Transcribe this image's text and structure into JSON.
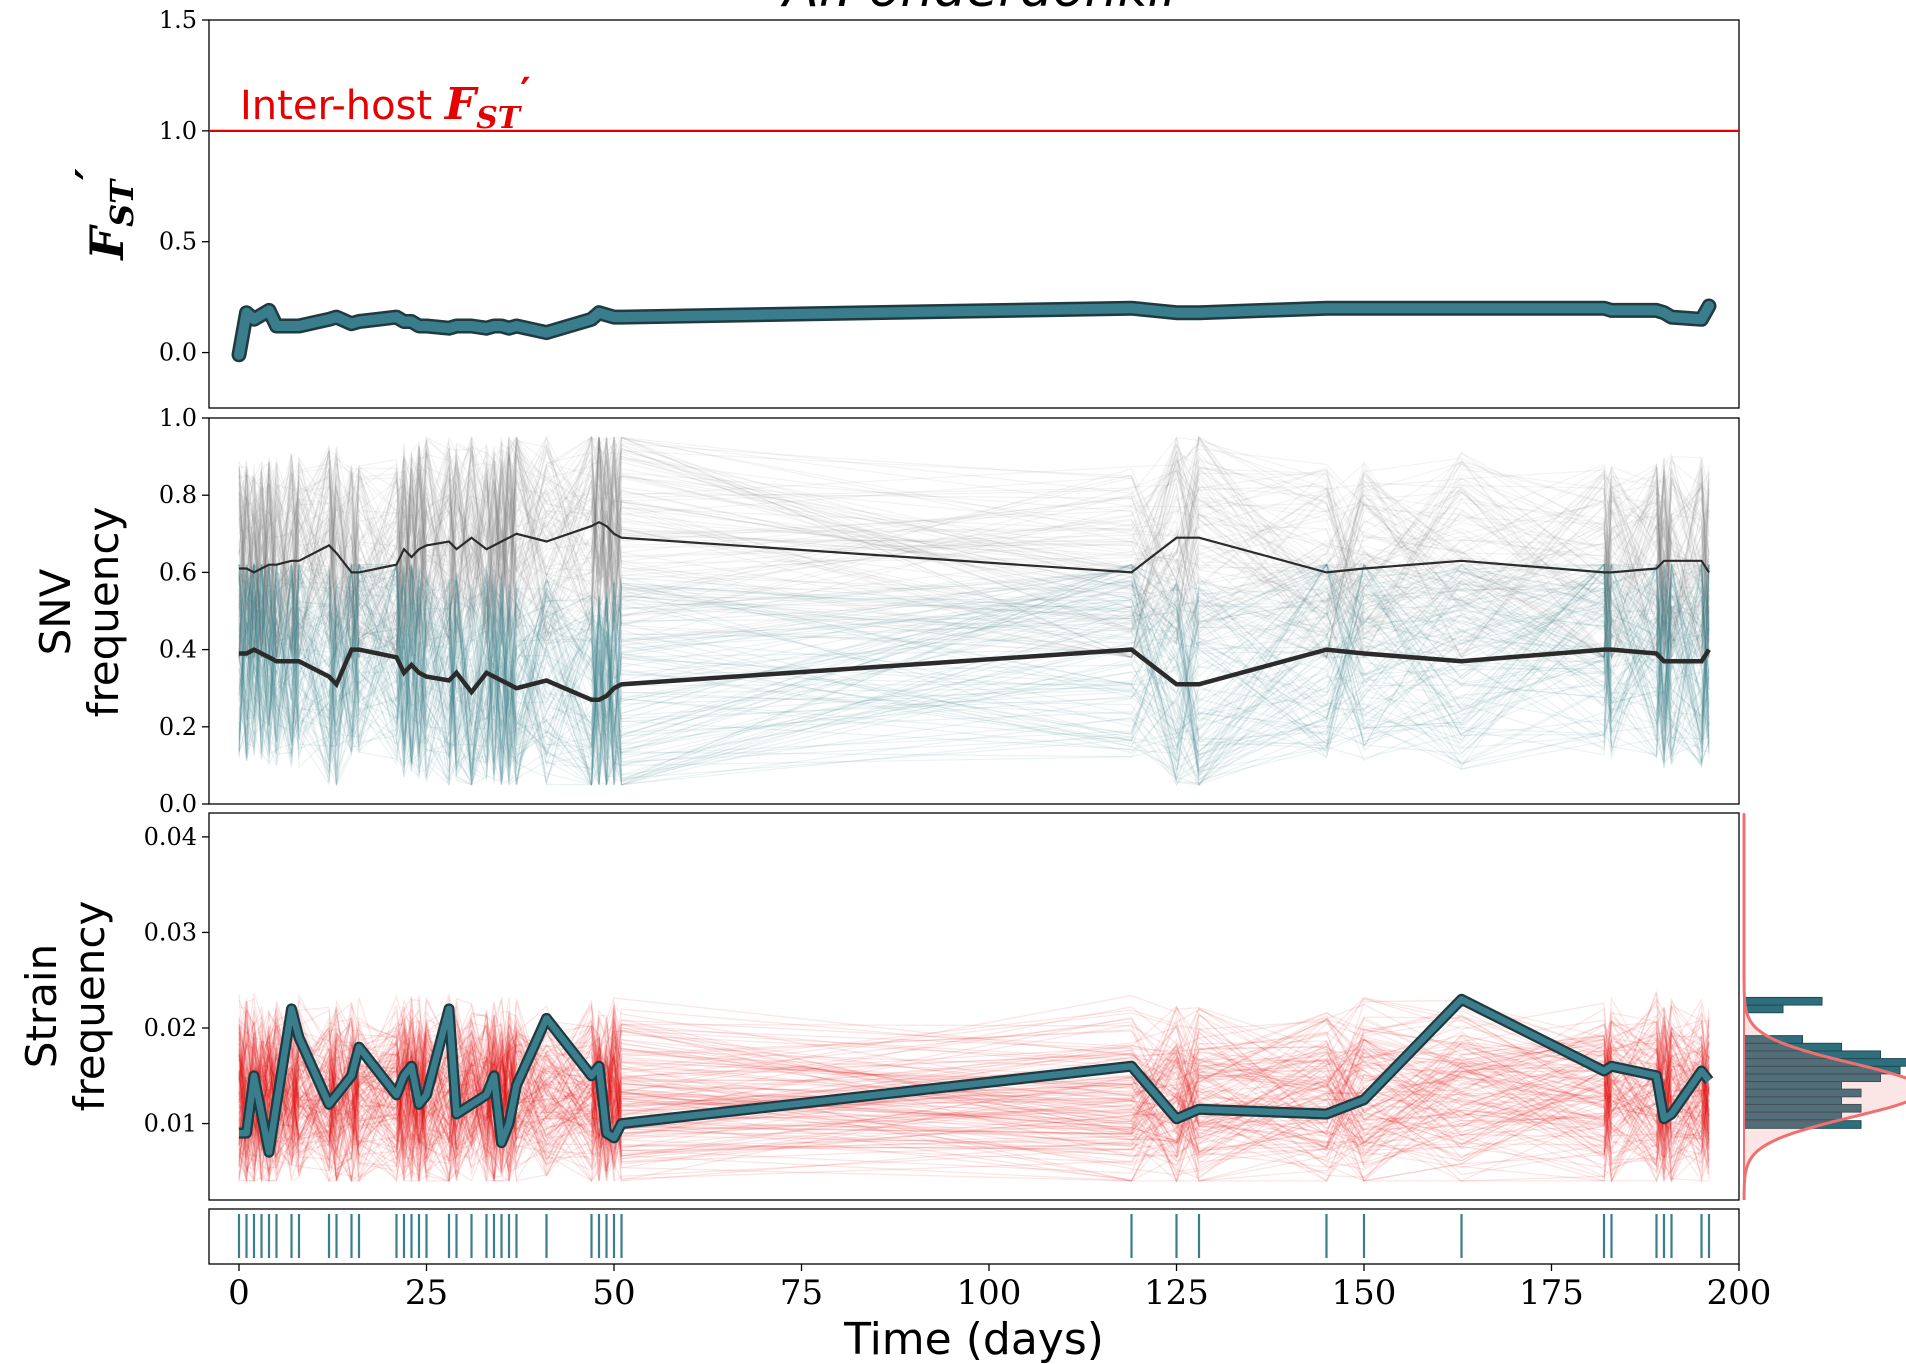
{
  "title": "Ar. onderdonkii",
  "colors": {
    "teal": "#3a7d8c",
    "teal_dark": "#1f3a40",
    "red": "#e60000",
    "grey": "#7f7f7f",
    "dark": "#2b2b2b",
    "hist_fill": "#2f6e7c",
    "kde": "#f07070"
  },
  "chart_data": [
    {
      "id": "fst",
      "type": "line",
      "ylabel_main": "F",
      "ylabel_sub": "ST",
      "ylabel_prime": "′",
      "ylim": [
        -0.25,
        1.5
      ],
      "yticks": [
        "1.5",
        "1.0",
        "0.5",
        "0.0"
      ],
      "ytick_values": [
        1.5,
        1.0,
        0.5,
        0.0
      ],
      "reference_line": {
        "y": 1.0,
        "label_main": "Inter-host ",
        "label_f": "F",
        "label_sub": "ST",
        "label_prime": "′"
      },
      "series": [
        {
          "x": [
            0,
            1,
            2,
            3,
            4,
            5,
            7,
            8,
            12,
            13,
            15,
            16,
            21,
            22,
            23,
            24,
            25,
            28,
            29,
            31,
            33,
            34,
            35,
            36,
            37,
            41,
            47,
            48,
            49,
            50,
            51,
            119,
            125,
            128,
            145,
            150,
            163,
            182,
            183,
            189,
            190,
            191,
            195,
            196
          ],
          "y": [
            -0.01,
            0.18,
            0.15,
            0.17,
            0.19,
            0.12,
            0.12,
            0.12,
            0.15,
            0.16,
            0.13,
            0.14,
            0.16,
            0.14,
            0.14,
            0.12,
            0.12,
            0.11,
            0.12,
            0.12,
            0.11,
            0.12,
            0.12,
            0.11,
            0.12,
            0.09,
            0.15,
            0.18,
            0.17,
            0.16,
            0.16,
            0.2,
            0.18,
            0.18,
            0.2,
            0.2,
            0.2,
            0.2,
            0.19,
            0.19,
            0.18,
            0.16,
            0.15,
            0.21
          ]
        }
      ]
    },
    {
      "id": "snv",
      "type": "line",
      "ylabel_line1": "SNV",
      "ylabel_line2": "frequency",
      "ylim": [
        0.0,
        1.0
      ],
      "yticks": [
        "1.0",
        "0.8",
        "0.6",
        "0.4",
        "0.2",
        "0.0"
      ],
      "ytick_values": [
        1.0,
        0.8,
        0.6,
        0.4,
        0.2,
        0.0
      ],
      "series": [
        {
          "role": "major",
          "x": [
            0,
            1,
            2,
            3,
            4,
            5,
            7,
            8,
            12,
            13,
            15,
            16,
            21,
            22,
            23,
            24,
            25,
            28,
            29,
            31,
            33,
            34,
            35,
            36,
            37,
            41,
            47,
            48,
            49,
            50,
            51,
            119,
            125,
            128,
            145,
            150,
            163,
            182,
            183,
            189,
            190,
            191,
            195,
            196
          ],
          "y": [
            0.61,
            0.61,
            0.6,
            0.61,
            0.62,
            0.62,
            0.63,
            0.63,
            0.67,
            0.65,
            0.6,
            0.6,
            0.62,
            0.66,
            0.64,
            0.66,
            0.67,
            0.68,
            0.66,
            0.69,
            0.66,
            0.67,
            0.68,
            0.69,
            0.7,
            0.68,
            0.72,
            0.73,
            0.72,
            0.7,
            0.69,
            0.6,
            0.69,
            0.69,
            0.6,
            0.61,
            0.63,
            0.6,
            0.6,
            0.61,
            0.63,
            0.63,
            0.63,
            0.6
          ]
        },
        {
          "role": "minor",
          "x": [
            0,
            1,
            2,
            3,
            4,
            5,
            7,
            8,
            12,
            13,
            15,
            16,
            21,
            22,
            23,
            24,
            25,
            28,
            29,
            31,
            33,
            34,
            35,
            36,
            37,
            41,
            47,
            48,
            49,
            50,
            51,
            119,
            125,
            128,
            145,
            150,
            163,
            182,
            183,
            189,
            190,
            191,
            195,
            196
          ],
          "y": [
            0.39,
            0.39,
            0.4,
            0.39,
            0.38,
            0.37,
            0.37,
            0.37,
            0.33,
            0.31,
            0.4,
            0.4,
            0.38,
            0.34,
            0.36,
            0.34,
            0.33,
            0.32,
            0.34,
            0.29,
            0.34,
            0.33,
            0.32,
            0.31,
            0.3,
            0.32,
            0.27,
            0.27,
            0.28,
            0.3,
            0.31,
            0.4,
            0.31,
            0.31,
            0.4,
            0.39,
            0.37,
            0.4,
            0.4,
            0.39,
            0.37,
            0.37,
            0.37,
            0.4
          ]
        }
      ]
    },
    {
      "id": "strain",
      "type": "line",
      "ylabel_line1": "Strain",
      "ylabel_line2": "frequency",
      "ylim": [
        0.002,
        0.0425
      ],
      "yticks": [
        "0.04",
        "0.03",
        "0.02",
        "0.01"
      ],
      "ytick_values": [
        0.04,
        0.03,
        0.02,
        0.01
      ],
      "series": [
        {
          "x": [
            0,
            1,
            2,
            3,
            4,
            5,
            7,
            8,
            12,
            13,
            15,
            16,
            21,
            22,
            23,
            24,
            25,
            28,
            29,
            31,
            33,
            34,
            35,
            36,
            37,
            41,
            47,
            48,
            49,
            50,
            51,
            119,
            125,
            128,
            145,
            150,
            163,
            182,
            183,
            189,
            190,
            191,
            195,
            196
          ],
          "y": [
            0.009,
            0.009,
            0.015,
            0.011,
            0.007,
            0.012,
            0.022,
            0.019,
            0.012,
            0.013,
            0.015,
            0.018,
            0.013,
            0.015,
            0.016,
            0.012,
            0.013,
            0.022,
            0.011,
            0.012,
            0.013,
            0.015,
            0.008,
            0.01,
            0.014,
            0.021,
            0.015,
            0.016,
            0.009,
            0.0085,
            0.01,
            0.016,
            0.0105,
            0.0115,
            0.011,
            0.0125,
            0.023,
            0.0155,
            0.016,
            0.015,
            0.0105,
            0.011,
            0.0155,
            0.0145
          ]
        }
      ],
      "histogram": {
        "orientation": "horizontal",
        "bins_y": [
          0.0095,
          0.0104,
          0.0112,
          0.012,
          0.0128,
          0.0136,
          0.0144,
          0.0152,
          0.016,
          0.0168,
          0.0176,
          0.0184,
          0.0192,
          0.02,
          0.0208,
          0.0216,
          0.0224,
          0.0232
        ],
        "counts": [
          6,
          5,
          6,
          5,
          6,
          5,
          7,
          8,
          10,
          7,
          5,
          3,
          0,
          0,
          0,
          2,
          4,
          0
        ],
        "kde_mean": 0.0135,
        "kde_sd": 0.0028
      }
    },
    {
      "id": "sampling",
      "type": "scatter",
      "sample_days": [
        0,
        1,
        2,
        3,
        4,
        5,
        7,
        8,
        12,
        13,
        15,
        16,
        21,
        22,
        23,
        24,
        25,
        28,
        29,
        31,
        33,
        34,
        35,
        36,
        37,
        41,
        47,
        48,
        49,
        50,
        51,
        119,
        125,
        128,
        145,
        150,
        163,
        182,
        183,
        189,
        190,
        191,
        195,
        196
      ],
      "xlabel": "Time (days)",
      "xlim": [
        -4,
        200
      ],
      "xticks": [
        "0",
        "25",
        "50",
        "75",
        "100",
        "125",
        "150",
        "175",
        "200"
      ],
      "xtick_values": [
        0,
        25,
        50,
        75,
        100,
        125,
        150,
        175,
        200
      ]
    }
  ]
}
